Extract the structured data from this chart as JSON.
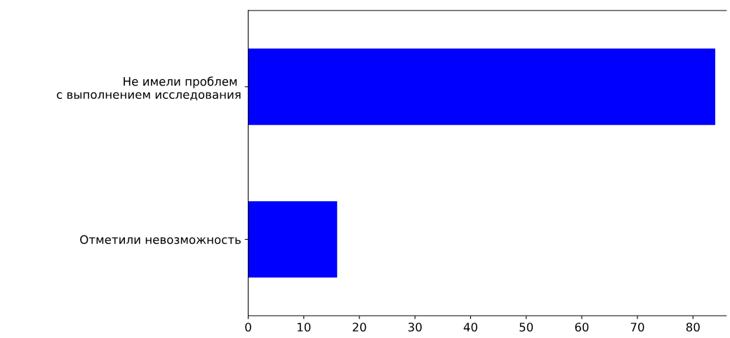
{
  "chart_data": {
    "type": "bar",
    "orientation": "horizontal",
    "categories": [
      "Не имели проблем \nс выполнением исследования",
      "Отметили невозможность"
    ],
    "values": [
      84,
      16
    ],
    "color": "#0000ff",
    "xlim": [
      0,
      86
    ],
    "xticks": [
      0,
      10,
      20,
      30,
      40,
      50,
      60,
      70,
      80
    ],
    "grid": false,
    "legend": false
  }
}
